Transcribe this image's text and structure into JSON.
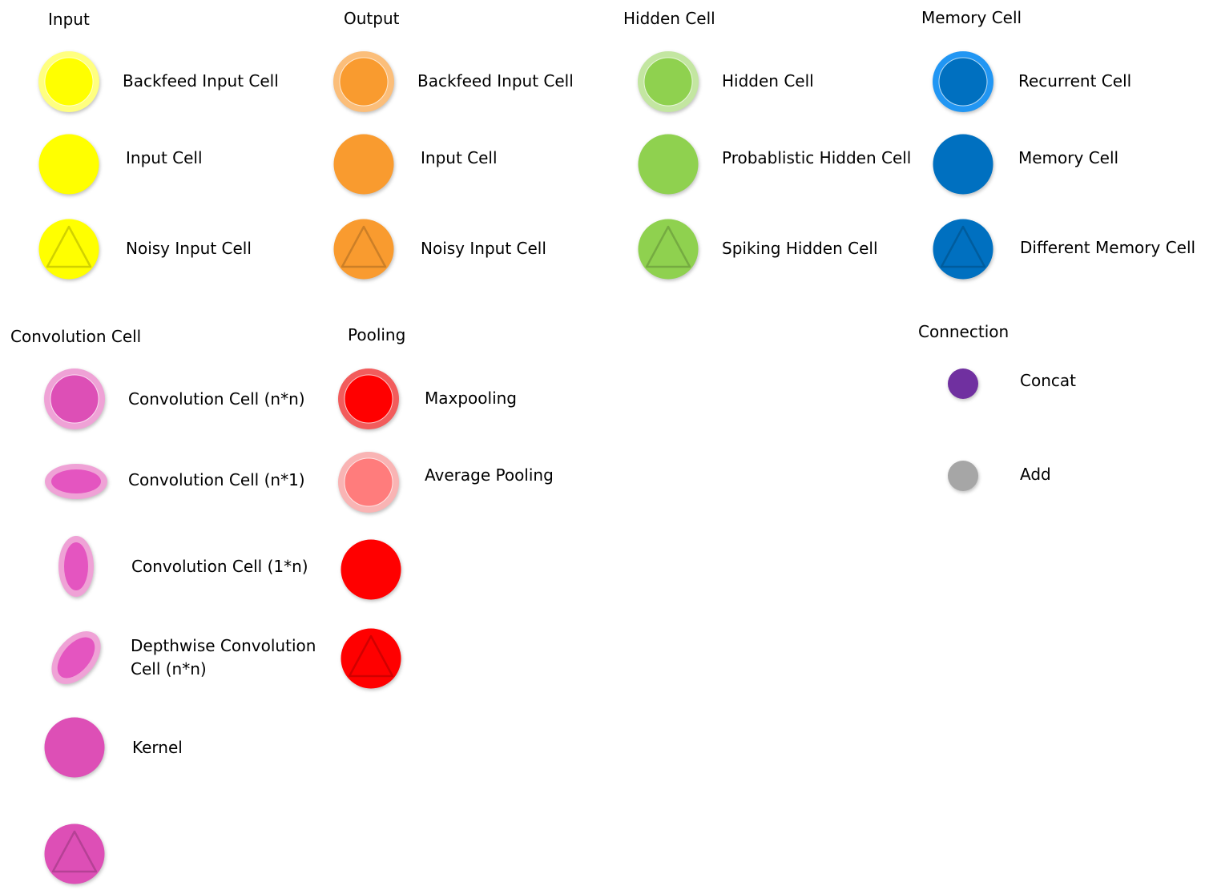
{
  "sections": {
    "input": {
      "title": "Input",
      "items": [
        {
          "label": "Backfeed Input Cell",
          "fill": "#FFFF00",
          "ring": "#FFFF80",
          "shape": "ringed"
        },
        {
          "label": "Input Cell",
          "fill": "#FFFF00",
          "shape": "plain"
        },
        {
          "label": "Noisy Input Cell",
          "fill": "#FFFF00",
          "shape": "triangle"
        }
      ]
    },
    "output": {
      "title": "Output",
      "items": [
        {
          "label": "Backfeed Input Cell",
          "fill": "#F99B2F",
          "ring": "#FBBE7A",
          "shape": "ringed"
        },
        {
          "label": "Input Cell",
          "fill": "#F99B2F",
          "shape": "plain"
        },
        {
          "label": "Noisy Input Cell",
          "fill": "#F99B2F",
          "shape": "triangle"
        }
      ]
    },
    "hidden": {
      "title": "Hidden Cell",
      "items": [
        {
          "label": "Hidden Cell",
          "fill": "#8FD14F",
          "ring": "#C3E6A1",
          "shape": "ringed"
        },
        {
          "label": "Probablistic Hidden Cell",
          "fill": "#8FD14F",
          "shape": "plain"
        },
        {
          "label": "Spiking Hidden Cell",
          "fill": "#8FD14F",
          "shape": "triangle"
        }
      ]
    },
    "memory": {
      "title": "Memory Cell",
      "items": [
        {
          "label": "Recurrent Cell",
          "fill": "#0070C0",
          "ring": "#2196F3",
          "shape": "ringed"
        },
        {
          "label": "Memory Cell",
          "fill": "#0070C0",
          "shape": "plain"
        },
        {
          "label": "Different Memory Cell",
          "fill": "#0070C0",
          "shape": "triangle"
        }
      ]
    },
    "convolution": {
      "title": "Convolution Cell",
      "items": [
        {
          "label": "Convolution Cell (n*n)",
          "fill": "#DD4FB6",
          "ring": "#EFA2D6",
          "shape": "ringed"
        },
        {
          "label": "Convolution Cell (n*1)",
          "fill": "#E455C0",
          "ring": "#EFA2D6",
          "shape": "ellipse-h"
        },
        {
          "label": "Convolution Cell (1*n)",
          "fill": "#E455C0",
          "ring": "#EFA2D6",
          "shape": "ellipse-v"
        },
        {
          "label": "Depthwise Convolution",
          "label2": "Cell (n*n)",
          "fill": "#E455C0",
          "ring": "#EFA2D6",
          "shape": "ellipse-tilt"
        },
        {
          "label": "Kernel",
          "fill": "#DD4FB6",
          "shape": "plain"
        },
        {
          "label": "",
          "fill": "#DD4FB6",
          "shape": "triangle"
        }
      ]
    },
    "pooling": {
      "title": "Pooling",
      "items": [
        {
          "label": "Maxpooling",
          "fill": "#FF0000",
          "ring": "#F25C5C",
          "shape": "ringed"
        },
        {
          "label": "Average Pooling",
          "fill": "#FF7C7C",
          "ring": "#F9B4B4",
          "shape": "ringed"
        },
        {
          "label": "",
          "fill": "#FF0000",
          "shape": "plain"
        },
        {
          "label": "",
          "fill": "#FF0000",
          "shape": "triangle"
        }
      ]
    },
    "connection": {
      "title": "Connection",
      "items": [
        {
          "label": "Concat",
          "fill": "#7030A0",
          "shape": "small"
        },
        {
          "label": "Add",
          "fill": "#A6A6A6",
          "shape": "small"
        }
      ]
    }
  }
}
